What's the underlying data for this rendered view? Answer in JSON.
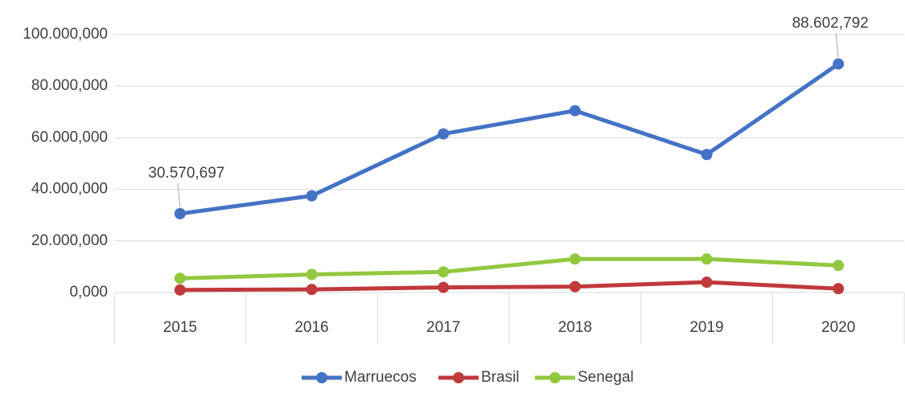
{
  "chart_data": {
    "type": "line",
    "categories": [
      "2015",
      "2016",
      "2017",
      "2018",
      "2019",
      "2020"
    ],
    "series": [
      {
        "name": "Marruecos",
        "color": "#4472c4",
        "values": [
          30570697,
          37500000,
          61500000,
          70500000,
          53500000,
          88602792
        ],
        "value_labels": [
          "30.570,697",
          null,
          null,
          null,
          null,
          "88.602,792"
        ]
      },
      {
        "name": "Brasil",
        "color": "#c0393b",
        "values": [
          1000000,
          1200000,
          2000000,
          2300000,
          4000000,
          1500000
        ]
      },
      {
        "name": "Senegal",
        "color": "#92c83e",
        "values": [
          5500000,
          7000000,
          8000000,
          13000000,
          13000000,
          10500000
        ]
      }
    ],
    "ylim": [
      0,
      100000000
    ],
    "yticks": [
      {
        "value": 0,
        "label": "0,000"
      },
      {
        "value": 20000000,
        "label": "20.000,000"
      },
      {
        "value": 40000000,
        "label": "40.000,000"
      },
      {
        "value": 60000000,
        "label": "60.000,000"
      },
      {
        "value": 80000000,
        "label": "80.000,000"
      },
      {
        "value": 100000000,
        "label": "100.000,000"
      }
    ],
    "grid": true,
    "legend": "bottom"
  }
}
